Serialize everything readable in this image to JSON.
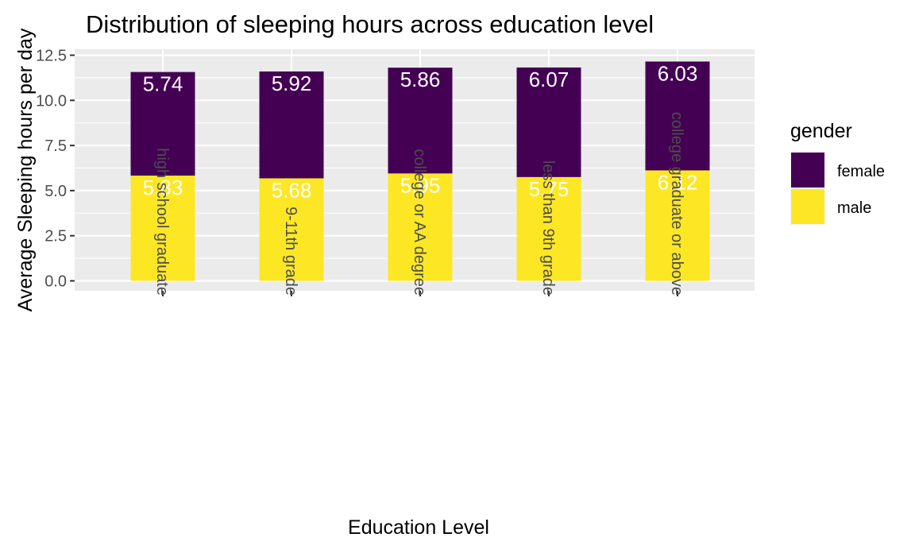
{
  "chart_data": {
    "type": "bar",
    "stacked": true,
    "title": "Distribution of sleeping hours across education level",
    "xlabel": "Education Level",
    "ylabel": "Average Sleeping hours per day",
    "categories": [
      "high school graduate",
      "9-11th grade",
      "college or AA degree",
      "less than 9th grade",
      "college graduate or above"
    ],
    "series": [
      {
        "name": "male",
        "color": "#FDE725",
        "values": [
          5.83,
          5.68,
          5.95,
          5.75,
          6.12
        ]
      },
      {
        "name": "female",
        "color": "#440154",
        "values": [
          5.74,
          5.92,
          5.86,
          6.07,
          6.03
        ]
      }
    ],
    "ylim": [
      0,
      12.5
    ],
    "yticks": [
      "0.0",
      "2.5",
      "5.0",
      "7.5",
      "10.0",
      "12.5"
    ],
    "grid": true,
    "panel_background": "#EBEBEB",
    "legend": {
      "title": "gender",
      "position": "right",
      "entries": [
        "female",
        "male"
      ]
    },
    "data_labels": true,
    "x_tick_label_rotation": "vertical"
  }
}
